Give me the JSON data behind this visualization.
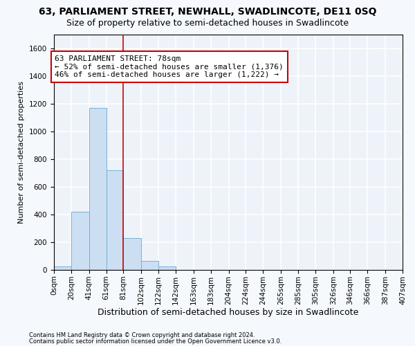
{
  "title": "63, PARLIAMENT STREET, NEWHALL, SWADLINCOTE, DE11 0SQ",
  "subtitle": "Size of property relative to semi-detached houses in Swadlincote",
  "xlabel": "Distribution of semi-detached houses by size in Swadlincote",
  "ylabel": "Number of semi-detached properties",
  "footnote1": "Contains HM Land Registry data © Crown copyright and database right 2024.",
  "footnote2": "Contains public sector information licensed under the Open Government Licence v3.0.",
  "annotation_title": "63 PARLIAMENT STREET: 78sqm",
  "annotation_line1": "← 52% of semi-detached houses are smaller (1,376)",
  "annotation_line2": "46% of semi-detached houses are larger (1,222) →",
  "ylim": [
    0,
    1700
  ],
  "yticks": [
    0,
    200,
    400,
    600,
    800,
    1000,
    1200,
    1400,
    1600
  ],
  "bin_edges": [
    0,
    20,
    41,
    61,
    81,
    102,
    122,
    142,
    163,
    183,
    204,
    224,
    244,
    265,
    285,
    305,
    326,
    346,
    366,
    387,
    407
  ],
  "bin_labels": [
    "0sqm",
    "20sqm",
    "41sqm",
    "61sqm",
    "81sqm",
    "102sqm",
    "122sqm",
    "142sqm",
    "163sqm",
    "183sqm",
    "204sqm",
    "224sqm",
    "244sqm",
    "265sqm",
    "285sqm",
    "305sqm",
    "326sqm",
    "346sqm",
    "366sqm",
    "387sqm",
    "407sqm"
  ],
  "bar_heights": [
    25,
    420,
    1170,
    720,
    230,
    65,
    25,
    0,
    0,
    0,
    0,
    0,
    0,
    0,
    0,
    0,
    0,
    0,
    0,
    0
  ],
  "bar_color": "#ccdff2",
  "bar_edge_color": "#7aafd4",
  "red_line_x": 81,
  "background_color": "#f5f8fd",
  "plot_bg_color": "#eef3fa",
  "grid_color": "#ffffff",
  "annotation_box_color": "#ffffff",
  "annotation_box_edge": "#cc0000",
  "title_fontsize": 10,
  "subtitle_fontsize": 9,
  "xlabel_fontsize": 9,
  "ylabel_fontsize": 8,
  "tick_fontsize": 7.5,
  "annotation_fontsize": 8
}
